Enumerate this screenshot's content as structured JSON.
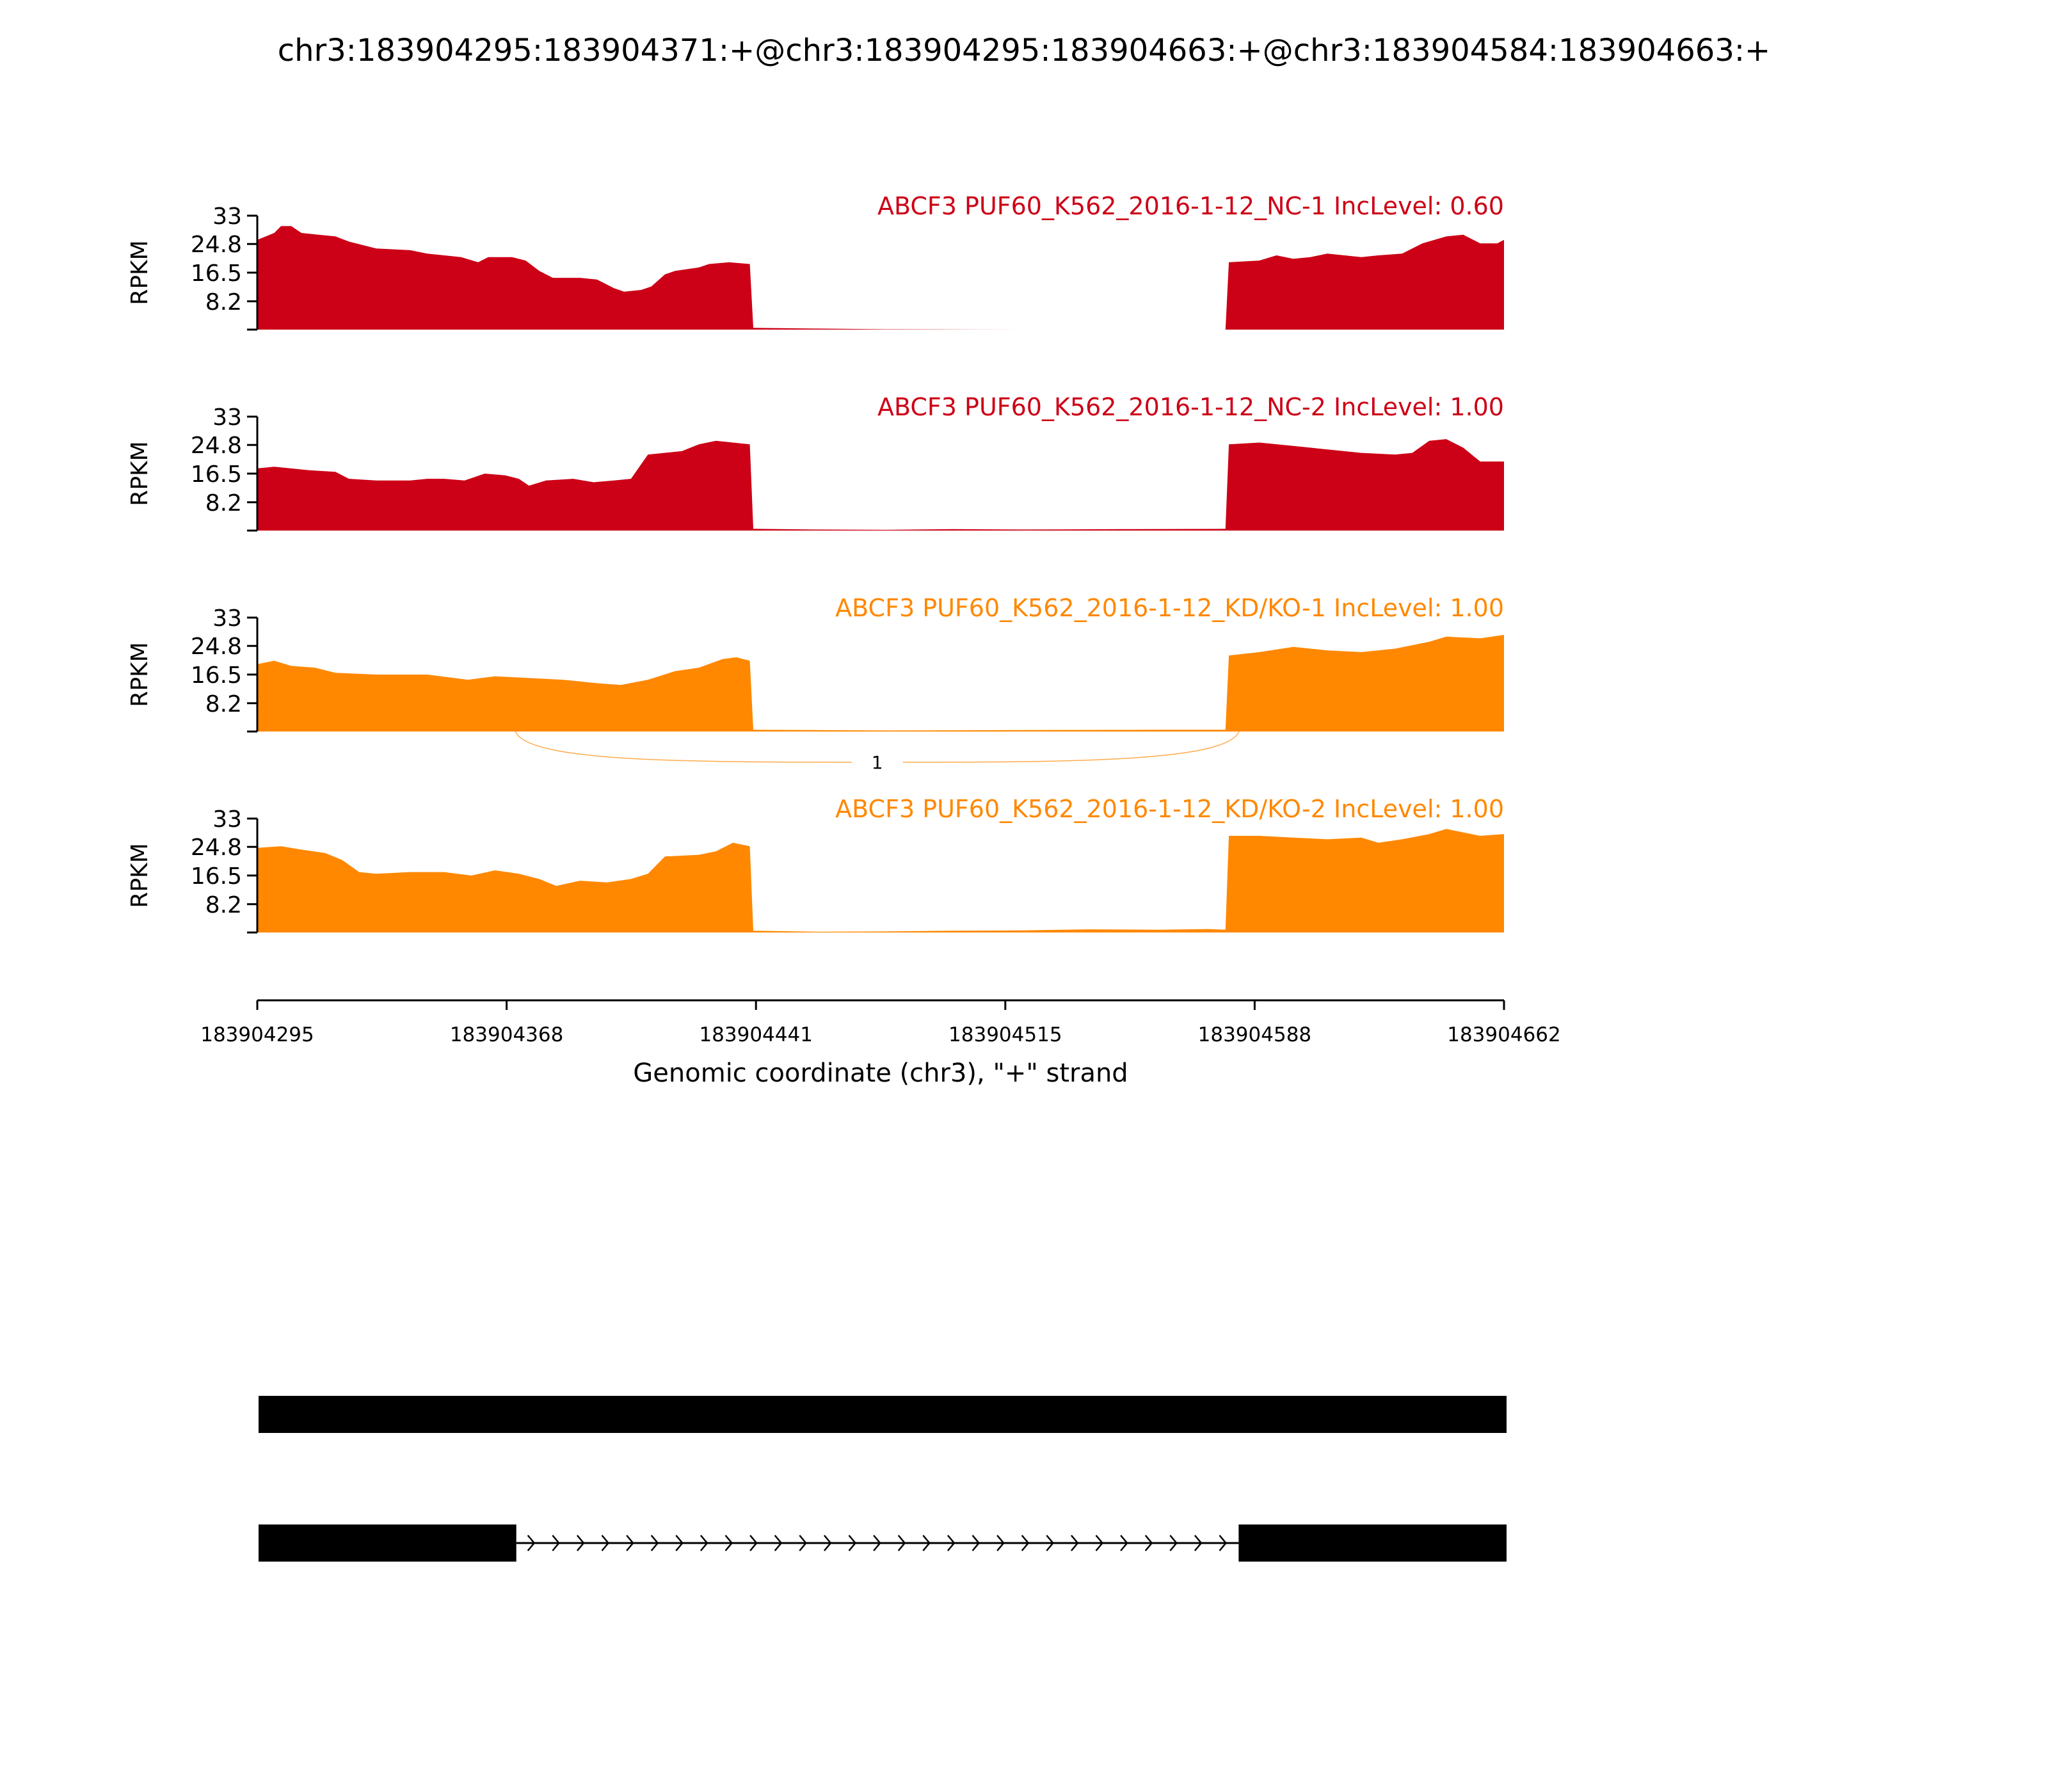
{
  "colors": {
    "nc": "#cc0016",
    "kd": "#ff8800",
    "axis": "#000000",
    "gene": "#000000"
  },
  "chart_data": {
    "type": "area",
    "title": "chr3:183904295:183904371:+@chr3:183904295:183904663:+@chr3:183904584:183904663:+",
    "xlabel": "Genomic coordinate (chr3), \"+\" strand",
    "ylabel": "RPKM",
    "xlim": [
      183904295,
      183904662
    ],
    "x_ticks": [
      "183904295",
      "183904368",
      "183904441",
      "183904515",
      "183904588",
      "183904662"
    ],
    "ylim": [
      0,
      33
    ],
    "y_ticks": [
      "33",
      "24.8",
      "16.5",
      "8.2"
    ],
    "tracks": [
      {
        "label": "ABCF3 PUF60_K562_2016-1-12_NC-1 IncLevel: 0.60",
        "color_key": "nc",
        "coverage": [
          [
            183904295,
            26
          ],
          [
            183904300,
            28
          ],
          [
            183904302,
            30
          ],
          [
            183904305,
            30
          ],
          [
            183904308,
            28
          ],
          [
            183904313,
            27.5
          ],
          [
            183904318,
            27
          ],
          [
            183904322,
            25.5
          ],
          [
            183904330,
            23.5
          ],
          [
            183904340,
            23
          ],
          [
            183904345,
            22
          ],
          [
            183904350,
            21.5
          ],
          [
            183904355,
            21
          ],
          [
            183904360,
            19.5
          ],
          [
            183904363,
            21
          ],
          [
            183904370,
            21
          ],
          [
            183904374,
            20
          ],
          [
            183904378,
            17
          ],
          [
            183904382,
            15
          ],
          [
            183904390,
            15
          ],
          [
            183904395,
            14.5
          ],
          [
            183904400,
            12
          ],
          [
            183904403,
            11
          ],
          [
            183904408,
            11.5
          ],
          [
            183904411,
            12.5
          ],
          [
            183904415,
            16
          ],
          [
            183904418,
            17
          ],
          [
            183904425,
            18
          ],
          [
            183904428,
            19
          ],
          [
            183904434,
            19.5
          ],
          [
            183904440,
            19
          ],
          [
            183904441,
            0.5
          ],
          [
            183904460,
            0.3
          ],
          [
            183904480,
            0.1
          ],
          [
            183904520,
            0
          ],
          [
            183904580,
            0
          ],
          [
            183904581,
            19.5
          ],
          [
            183904590,
            20
          ],
          [
            183904595,
            21.5
          ],
          [
            183904600,
            20.5
          ],
          [
            183904605,
            21
          ],
          [
            183904610,
            22
          ],
          [
            183904620,
            21
          ],
          [
            183904625,
            21.5
          ],
          [
            183904632,
            22
          ],
          [
            183904638,
            25
          ],
          [
            183904645,
            27
          ],
          [
            183904650,
            27.5
          ],
          [
            183904655,
            25
          ],
          [
            183904660,
            25
          ],
          [
            183904662,
            26
          ]
        ]
      },
      {
        "label": "ABCF3 PUF60_K562_2016-1-12_NC-2 IncLevel: 1.00",
        "color_key": "nc",
        "coverage": [
          [
            183904295,
            18
          ],
          [
            183904300,
            18.5
          ],
          [
            183904305,
            18
          ],
          [
            183904310,
            17.5
          ],
          [
            183904318,
            17
          ],
          [
            183904322,
            15
          ],
          [
            183904330,
            14.5
          ],
          [
            183904340,
            14.5
          ],
          [
            183904345,
            15
          ],
          [
            183904350,
            15
          ],
          [
            183904356,
            14.5
          ],
          [
            183904362,
            16.5
          ],
          [
            183904368,
            16
          ],
          [
            183904372,
            15
          ],
          [
            183904375,
            13
          ],
          [
            183904380,
            14.5
          ],
          [
            183904388,
            15
          ],
          [
            183904394,
            14
          ],
          [
            183904400,
            14.5
          ],
          [
            183904405,
            15
          ],
          [
            183904410,
            22
          ],
          [
            183904420,
            23
          ],
          [
            183904425,
            25
          ],
          [
            183904430,
            26
          ],
          [
            183904435,
            25.5
          ],
          [
            183904440,
            25
          ],
          [
            183904441,
            0.5
          ],
          [
            183904460,
            0.3
          ],
          [
            183904480,
            0.2
          ],
          [
            183904500,
            0.4
          ],
          [
            183904520,
            0.3
          ],
          [
            183904550,
            0.4
          ],
          [
            183904580,
            0.5
          ],
          [
            183904581,
            25
          ],
          [
            183904590,
            25.5
          ],
          [
            183904600,
            24.5
          ],
          [
            183904610,
            23.5
          ],
          [
            183904620,
            22.5
          ],
          [
            183904630,
            22
          ],
          [
            183904635,
            22.5
          ],
          [
            183904640,
            26
          ],
          [
            183904645,
            26.5
          ],
          [
            183904650,
            24
          ],
          [
            183904655,
            20
          ],
          [
            183904662,
            20
          ]
        ]
      },
      {
        "label": "ABCF3 PUF60_K562_2016-1-12_KD/KO-1 IncLevel: 1.00",
        "color_key": "kd",
        "coverage": [
          [
            183904295,
            19.5
          ],
          [
            183904300,
            20.5
          ],
          [
            183904305,
            19
          ],
          [
            183904312,
            18.5
          ],
          [
            183904318,
            17
          ],
          [
            183904330,
            16.5
          ],
          [
            183904345,
            16.5
          ],
          [
            183904357,
            15
          ],
          [
            183904365,
            16
          ],
          [
            183904375,
            15.5
          ],
          [
            183904385,
            15
          ],
          [
            183904395,
            14
          ],
          [
            183904402,
            13.5
          ],
          [
            183904410,
            15
          ],
          [
            183904418,
            17.5
          ],
          [
            183904425,
            18.5
          ],
          [
            183904432,
            21
          ],
          [
            183904436,
            21.5
          ],
          [
            183904440,
            20.5
          ],
          [
            183904441,
            0.5
          ],
          [
            183904480,
            0.3
          ],
          [
            183904520,
            0.4
          ],
          [
            183904560,
            0.5
          ],
          [
            183904580,
            0.5
          ],
          [
            183904581,
            22
          ],
          [
            183904590,
            23
          ],
          [
            183904600,
            24.5
          ],
          [
            183904610,
            23.5
          ],
          [
            183904620,
            23
          ],
          [
            183904630,
            24
          ],
          [
            183904640,
            26
          ],
          [
            183904645,
            27.5
          ],
          [
            183904655,
            27
          ],
          [
            183904662,
            28
          ]
        ]
      },
      {
        "label": "ABCF3 PUF60_K562_2016-1-12_KD/KO-2 IncLevel: 1.00",
        "color_key": "kd",
        "coverage": [
          [
            183904295,
            24.5
          ],
          [
            183904302,
            25
          ],
          [
            183904308,
            24
          ],
          [
            183904315,
            23
          ],
          [
            183904320,
            21
          ],
          [
            183904325,
            17.5
          ],
          [
            183904330,
            17
          ],
          [
            183904340,
            17.5
          ],
          [
            183904350,
            17.5
          ],
          [
            183904358,
            16.5
          ],
          [
            183904365,
            18
          ],
          [
            183904372,
            17
          ],
          [
            183904378,
            15.5
          ],
          [
            183904383,
            13.5
          ],
          [
            183904390,
            15
          ],
          [
            183904398,
            14.5
          ],
          [
            183904405,
            15.5
          ],
          [
            183904410,
            17
          ],
          [
            183904415,
            22
          ],
          [
            183904425,
            22.5
          ],
          [
            183904430,
            23.5
          ],
          [
            183904435,
            26
          ],
          [
            183904440,
            25
          ],
          [
            183904441,
            0.5
          ],
          [
            183904460,
            0.2
          ],
          [
            183904480,
            0.3
          ],
          [
            183904500,
            0.5
          ],
          [
            183904520,
            0.6
          ],
          [
            183904540,
            0.9
          ],
          [
            183904560,
            0.8
          ],
          [
            183904575,
            1
          ],
          [
            183904580,
            0.8
          ],
          [
            183904581,
            28
          ],
          [
            183904590,
            28
          ],
          [
            183904600,
            27.5
          ],
          [
            183904610,
            27
          ],
          [
            183904620,
            27.5
          ],
          [
            183904625,
            26
          ],
          [
            183904632,
            27
          ],
          [
            183904640,
            28.5
          ],
          [
            183904645,
            30
          ],
          [
            183904650,
            29
          ],
          [
            183904655,
            28
          ],
          [
            183904662,
            28.5
          ]
        ]
      }
    ],
    "junctions": [
      {
        "track": 2,
        "start": 183904371,
        "end": 183904584,
        "count": "1"
      }
    ],
    "isoforms": [
      {
        "exons": [
          [
            183904295,
            183904663
          ]
        ]
      },
      {
        "exons": [
          [
            183904295,
            183904371
          ],
          [
            183904584,
            183904663
          ]
        ],
        "strand": "+"
      }
    ]
  }
}
